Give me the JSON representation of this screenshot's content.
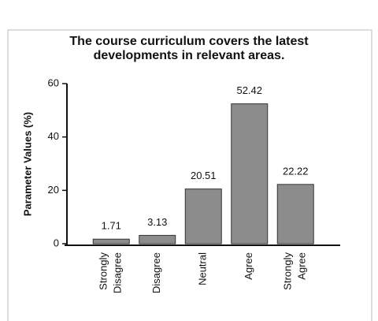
{
  "chart_data": {
    "type": "bar",
    "title": "The course curriculum covers the latest developments in relevant areas.",
    "y_label": "Parameter Values (%)",
    "categories": [
      "Strongly Disagree",
      "Disagree",
      "Neutral",
      "Agree",
      "Strongly Agree"
    ],
    "values": [
      1.71,
      3.13,
      20.51,
      52.42,
      22.22
    ],
    "color": "#8c8c8c",
    "ylim": [
      0,
      60
    ],
    "yticks": [
      0,
      20,
      40,
      60
    ],
    "grid": false
  }
}
